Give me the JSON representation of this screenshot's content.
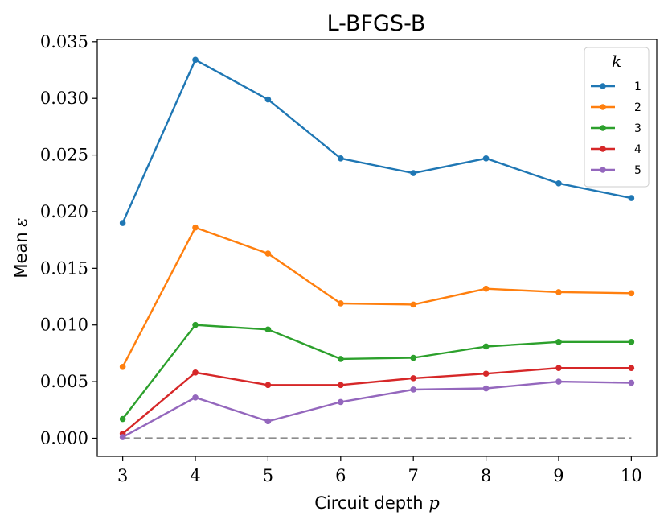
{
  "chart_data": {
    "type": "line",
    "title": "L-BFGS-B",
    "xlabel_text": "Circuit depth",
    "xlabel_symbol": "p",
    "ylabel_text": "Mean",
    "ylabel_symbol": "ε",
    "x": [
      3,
      4,
      5,
      6,
      7,
      8,
      9,
      10
    ],
    "xlim": [
      2.65,
      10.35
    ],
    "ylim": [
      -0.0016,
      0.0352
    ],
    "xticks": [
      "3",
      "4",
      "5",
      "6",
      "7",
      "8",
      "9",
      "10"
    ],
    "yticks": [
      "0.000",
      "0.005",
      "0.010",
      "0.015",
      "0.020",
      "0.025",
      "0.030",
      "0.035"
    ],
    "ytick_values": [
      0,
      0.005,
      0.01,
      0.015,
      0.02,
      0.025,
      0.03,
      0.035
    ],
    "legend": {
      "title": "k",
      "position": "top-right"
    },
    "series": [
      {
        "name": "1",
        "color": "#1f77b4",
        "values": [
          0.019,
          0.0334,
          0.0299,
          0.0247,
          0.0234,
          0.0247,
          0.0225,
          0.0212
        ]
      },
      {
        "name": "2",
        "color": "#ff7f0e",
        "values": [
          0.0063,
          0.0186,
          0.0163,
          0.0119,
          0.0118,
          0.0132,
          0.0129,
          0.0128
        ]
      },
      {
        "name": "3",
        "color": "#2ca02c",
        "values": [
          0.0017,
          0.01,
          0.0096,
          0.007,
          0.0071,
          0.0081,
          0.0085,
          0.0085
        ]
      },
      {
        "name": "4",
        "color": "#d62728",
        "values": [
          0.0004,
          0.0058,
          0.0047,
          0.0047,
          0.0053,
          0.0057,
          0.0062,
          0.0062
        ]
      },
      {
        "name": "5",
        "color": "#9467bd",
        "values": [
          0.0001,
          0.0036,
          0.0015,
          0.0032,
          0.0043,
          0.0044,
          0.005,
          0.0049
        ]
      }
    ],
    "baseline": {
      "value": 0,
      "style": "dashed",
      "color": "#8c8c8c"
    }
  }
}
